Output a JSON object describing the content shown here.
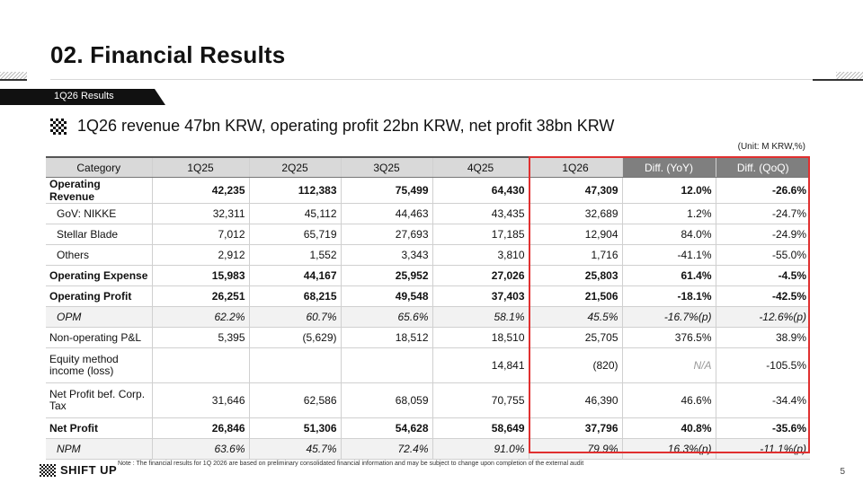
{
  "header": {
    "title": "02. Financial Results",
    "section_tab": "1Q26 Results",
    "headline": "1Q26 revenue 47bn KRW, operating profit 22bn KRW, net profit 38bn KRW",
    "unit": "(Unit: M KRW,%)"
  },
  "table": {
    "columns": [
      "Category",
      "1Q25",
      "2Q25",
      "3Q25",
      "4Q25",
      "1Q26",
      "Diff. (YoY)",
      "Diff. (QoQ)"
    ],
    "rows": [
      {
        "cat": "Operating Revenue",
        "q125": "42,235",
        "q225": "112,383",
        "q325": "75,499",
        "q425": "64,430",
        "q126": "47,309",
        "yoy": "12.0%",
        "qoq": "-26.6%"
      },
      {
        "cat": "GoV: NIKKE",
        "q125": "32,311",
        "q225": "45,112",
        "q325": "44,463",
        "q425": "43,435",
        "q126": "32,689",
        "yoy": "1.2%",
        "qoq": "-24.7%"
      },
      {
        "cat": "Stellar Blade",
        "q125": "7,012",
        "q225": "65,719",
        "q325": "27,693",
        "q425": "17,185",
        "q126": "12,904",
        "yoy": "84.0%",
        "qoq": "-24.9%"
      },
      {
        "cat": "Others",
        "q125": "2,912",
        "q225": "1,552",
        "q325": "3,343",
        "q425": "3,810",
        "q126": "1,716",
        "yoy": "-41.1%",
        "qoq": "-55.0%"
      },
      {
        "cat": "Operating Expense",
        "q125": "15,983",
        "q225": "44,167",
        "q325": "25,952",
        "q425": "27,026",
        "q126": "25,803",
        "yoy": "61.4%",
        "qoq": "-4.5%"
      },
      {
        "cat": "Operating Profit",
        "q125": "26,251",
        "q225": "68,215",
        "q325": "49,548",
        "q425": "37,403",
        "q126": "21,506",
        "yoy": "-18.1%",
        "qoq": "-42.5%"
      },
      {
        "cat": "OPM",
        "q125": "62.2%",
        "q225": "60.7%",
        "q325": "65.6%",
        "q425": "58.1%",
        "q126": "45.5%",
        "yoy": "-16.7%(p)",
        "qoq": "-12.6%(p)"
      },
      {
        "cat": "Non-operating P&L",
        "q125": "5,395",
        "q225": "(5,629)",
        "q325": "18,512",
        "q425": "18,510",
        "q126": "25,705",
        "yoy": "376.5%",
        "qoq": "38.9%"
      },
      {
        "cat_line1": "Equity method",
        "cat_line2": "income (loss)",
        "q125": "",
        "q225": "",
        "q325": "",
        "q425": "14,841",
        "q126": "(820)",
        "yoy": "N/A",
        "qoq": "-105.5%"
      },
      {
        "cat_line1": "Net Profit bef. Corp.",
        "cat_line2": "Tax",
        "q125": "31,646",
        "q225": "62,586",
        "q325": "68,059",
        "q425": "70,755",
        "q126": "46,390",
        "yoy": "46.6%",
        "qoq": "-34.4%"
      },
      {
        "cat": "Net Profit",
        "q125": "26,846",
        "q225": "51,306",
        "q325": "54,628",
        "q425": "58,649",
        "q126": "37,796",
        "yoy": "40.8%",
        "qoq": "-35.6%"
      },
      {
        "cat": "NPM",
        "q125": "63.6%",
        "q225": "45.7%",
        "q325": "72.4%",
        "q425": "91.0%",
        "q126": "79.9%",
        "yoy": "16.3%(p)",
        "qoq": "-11.1%(p)"
      }
    ]
  },
  "footer": {
    "note": "Note : The financial results for 1Q 2026 are based on preliminary consolidated financial information and may be subject to change upon completion of the external audit",
    "logo_text": "SHIFT UP",
    "page_number": "5"
  },
  "colors": {
    "highlight_border": "#e03030",
    "tab_bg": "#111111",
    "header_gray": "#d9d9d9",
    "diff_header": "#7f7f7f"
  }
}
